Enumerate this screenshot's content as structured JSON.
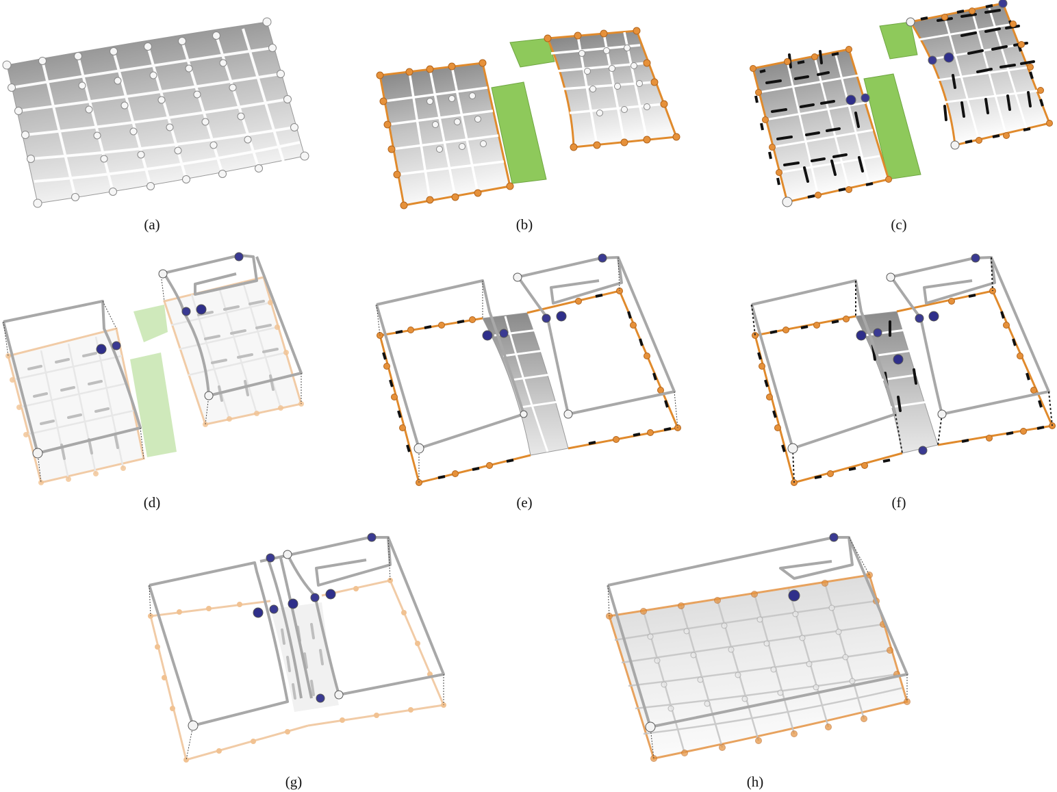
{
  "figure": {
    "panels": [
      {
        "id": "a",
        "caption": "(a)"
      },
      {
        "id": "b",
        "caption": "(b)"
      },
      {
        "id": "c",
        "caption": "(c)"
      },
      {
        "id": "d",
        "caption": "(d)"
      },
      {
        "id": "e",
        "caption": "(e)"
      },
      {
        "id": "f",
        "caption": "(f)"
      },
      {
        "id": "g",
        "caption": "(g)"
      },
      {
        "id": "h",
        "caption": "(h)"
      }
    ]
  },
  "colors": {
    "surface_light": "#f4f4f4",
    "surface_dark": "#8c8c8c",
    "grid_white": "#fafafa",
    "boundary_orange": "#e08a2c",
    "green_flap": "#7fbf3f",
    "frame_gray": "#a9a9a9",
    "arrow_black": "#111111",
    "dark_blue": "#2a2a86"
  }
}
